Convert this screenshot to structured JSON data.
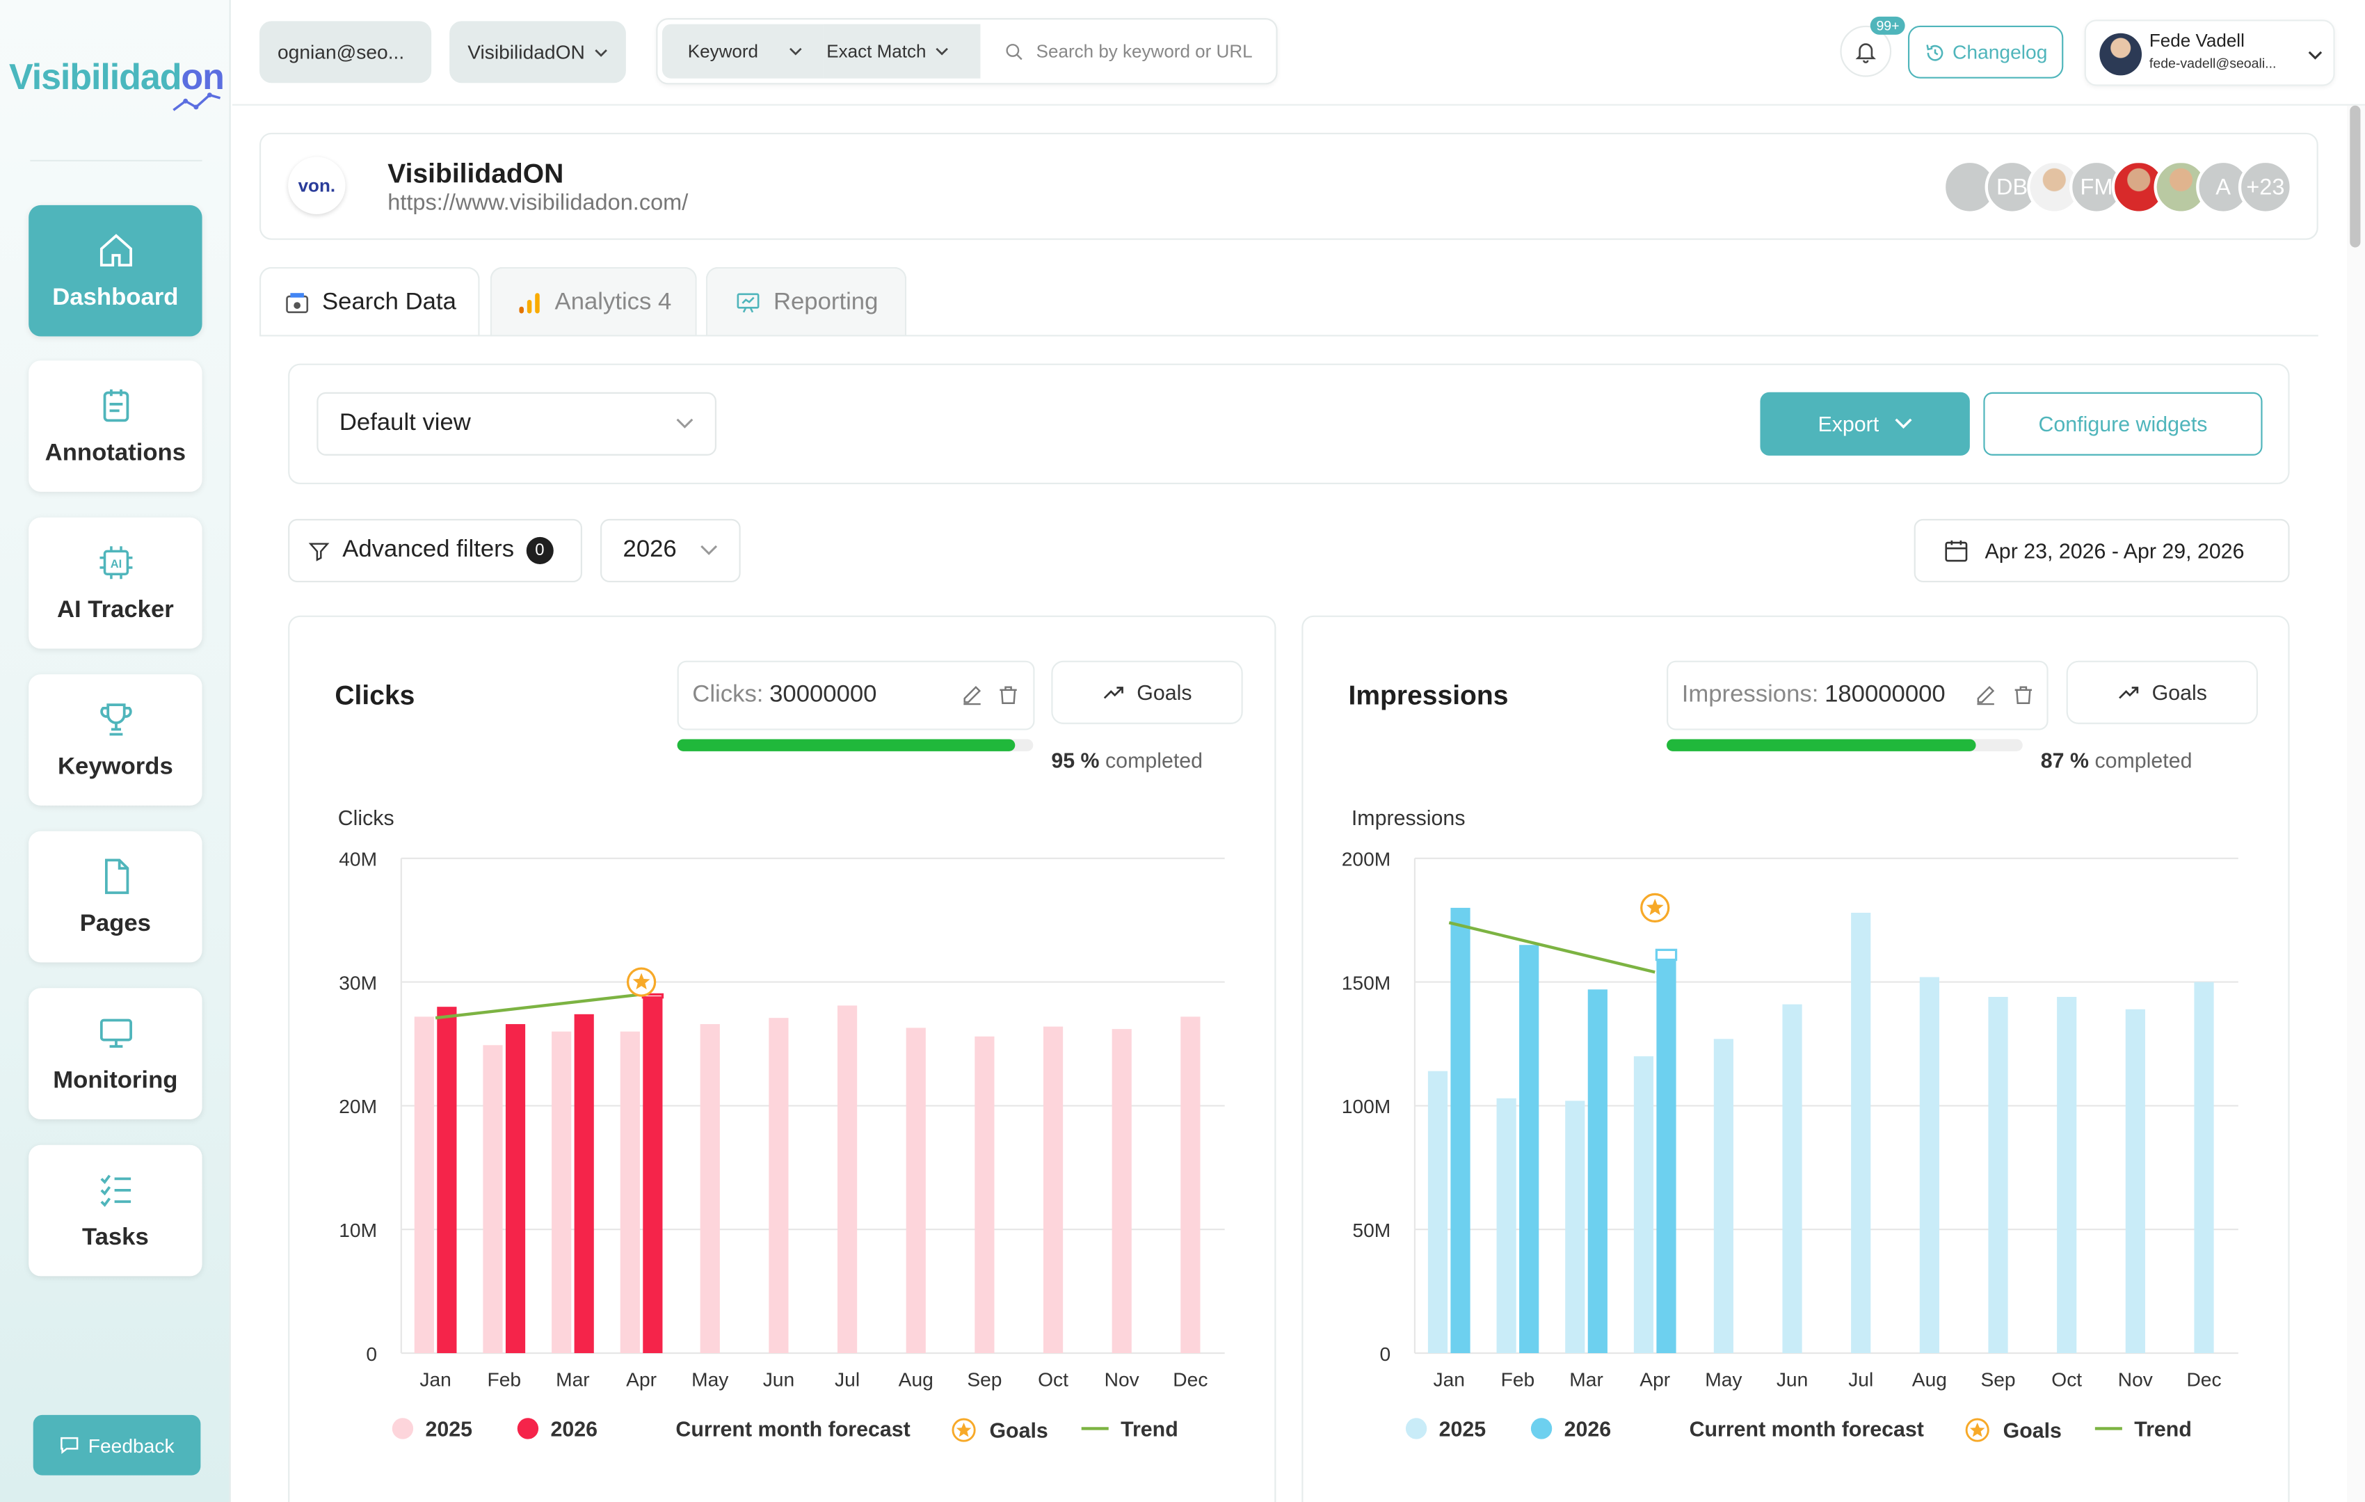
{
  "sidebar": {
    "logo": {
      "main": "Visibilidad",
      "accent": "on"
    },
    "items": [
      {
        "label": "Dashboard",
        "icon": "home-icon",
        "active": true
      },
      {
        "label": "Annotations",
        "icon": "notepad-icon",
        "active": false
      },
      {
        "label": "AI Tracker",
        "icon": "ai-chip-icon",
        "active": false
      },
      {
        "label": "Keywords",
        "icon": "trophy-icon",
        "active": false
      },
      {
        "label": "Pages",
        "icon": "page-icon",
        "active": false
      },
      {
        "label": "Monitoring",
        "icon": "monitor-icon",
        "active": false
      },
      {
        "label": "Tasks",
        "icon": "checklist-icon",
        "active": false
      }
    ],
    "feedback_label": "Feedback"
  },
  "topbar": {
    "account": "ognian@seo...",
    "project": "VisibilidadON",
    "search_type": "Keyword",
    "match_type": "Exact Match",
    "search_placeholder": "Search by keyword or URL",
    "notifications_badge": "99+",
    "changelog_label": "Changelog",
    "user_name": "Fede Vadell",
    "user_email": "fede-vadell@seoali..."
  },
  "project": {
    "logo_text": "von.",
    "name": "VisibilidadON",
    "url": "https://www.visibilidadon.com/",
    "members": [
      "DB",
      "FM",
      "A"
    ],
    "more_members": "+23"
  },
  "tabs": [
    {
      "label": "Search Data",
      "icon": "search-data-icon",
      "active": true
    },
    {
      "label": "Analytics 4",
      "icon": "analytics-icon",
      "active": false
    },
    {
      "label": "Reporting",
      "icon": "reporting-icon",
      "active": false
    }
  ],
  "viewbar": {
    "view": "Default view",
    "export_label": "Export",
    "configure_label": "Configure widgets"
  },
  "filters": {
    "advanced_label": "Advanced filters",
    "advanced_count": "0",
    "year": "2026",
    "date_range": "Apr 23, 2026 - Apr 29, 2026"
  },
  "colors": {
    "accent": "#4fb5bb",
    "clicks_2025": "#fdd5db",
    "clicks_2026": "#f5244a",
    "impressions_2025": "#c9ecf8",
    "impressions_2026": "#6dd0ef",
    "trend": "#7cb342",
    "goal": "#f7a928",
    "progress": "#20b83b"
  },
  "legend": {
    "y2025": "2025",
    "y2026": "2026",
    "forecast": "Current month forecast",
    "goals": "Goals",
    "trend": "Trend"
  },
  "cards": {
    "clicks": {
      "title": "Clicks",
      "goal_label": "Clicks:",
      "goal_value": "30000000",
      "goals_btn": "Goals",
      "percent": "95 %",
      "completed": "completed",
      "progress": 0.95
    },
    "impressions": {
      "title": "Impressions",
      "goal_label": "Impressions:",
      "goal_value": "180000000",
      "goals_btn": "Goals",
      "percent": "87 %",
      "completed": "completed",
      "progress": 0.87
    }
  },
  "chart_data": [
    {
      "type": "bar",
      "ylabel": "Clicks",
      "ylim": [
        0,
        40000000
      ],
      "yticks": [
        "0",
        "10M",
        "20M",
        "30M",
        "40M"
      ],
      "ytick_values": [
        0,
        10000000,
        20000000,
        30000000,
        40000000
      ],
      "categories": [
        "Jan",
        "Feb",
        "Mar",
        "Apr",
        "May",
        "Jun",
        "Jul",
        "Aug",
        "Sep",
        "Oct",
        "Nov",
        "Dec"
      ],
      "series": [
        {
          "name": "2025",
          "values": [
            27200000,
            24900000,
            26000000,
            26000000,
            26600000,
            27100000,
            28100000,
            26300000,
            25600000,
            26400000,
            26200000,
            27200000
          ]
        },
        {
          "name": "2026",
          "values": [
            28000000,
            26600000,
            27400000,
            28800000,
            null,
            null,
            null,
            null,
            null,
            null,
            null,
            null
          ]
        }
      ],
      "forecast": {
        "category": "Apr",
        "value": 29000000
      },
      "goal": {
        "category": "Apr",
        "value": 30000000
      },
      "trend": {
        "from": [
          "Jan",
          27100000
        ],
        "to": [
          "Apr",
          29000000
        ]
      },
      "grid": true,
      "legend_position": "bottom"
    },
    {
      "type": "bar",
      "ylabel": "Impressions",
      "ylim": [
        0,
        200000000
      ],
      "yticks": [
        "0",
        "50M",
        "100M",
        "150M",
        "200M"
      ],
      "ytick_values": [
        0,
        50000000,
        100000000,
        150000000,
        200000000
      ],
      "categories": [
        "Jan",
        "Feb",
        "Mar",
        "Apr",
        "May",
        "Jun",
        "Jul",
        "Aug",
        "Sep",
        "Oct",
        "Nov",
        "Dec"
      ],
      "series": [
        {
          "name": "2025",
          "values": [
            114000000,
            103000000,
            102000000,
            120000000,
            127000000,
            141000000,
            178000000,
            152000000,
            144000000,
            144000000,
            139000000,
            150000000
          ]
        },
        {
          "name": "2026",
          "values": [
            180000000,
            165000000,
            147000000,
            159000000,
            null,
            null,
            null,
            null,
            null,
            null,
            null,
            null
          ]
        }
      ],
      "forecast": {
        "category": "Apr",
        "value": 163000000
      },
      "goal": {
        "category": "Apr",
        "value": 180000000
      },
      "trend": {
        "from": [
          "Jan",
          174000000
        ],
        "to": [
          "Apr",
          154000000
        ]
      },
      "grid": true,
      "legend_position": "bottom"
    }
  ]
}
